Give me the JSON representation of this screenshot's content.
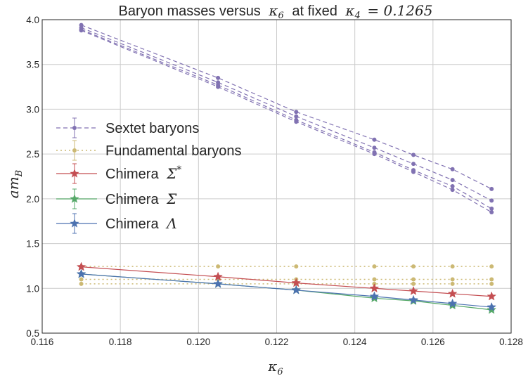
{
  "chart_data": {
    "type": "line",
    "title": "Baryon masses versus κ₆ at fixed κ₄ = 0.1265",
    "title_text": "Baryon masses versus",
    "title_math_kappa6": "κ",
    "title_math_sub6": "6",
    "title_mid": "at fixed",
    "title_math_kappa4": "κ",
    "title_math_sub4": "4",
    "title_value": "= 0.1265",
    "xlabel": "κ₆",
    "xlabel_main": "κ",
    "xlabel_sub": "6",
    "ylabel": "a m_B",
    "ylabel_main": "am",
    "ylabel_sub": "B",
    "xlim": [
      0.116,
      0.128
    ],
    "ylim": [
      0.5,
      4.0
    ],
    "xticks": [
      "0.116",
      "0.118",
      "0.120",
      "0.122",
      "0.124",
      "0.126",
      "0.128"
    ],
    "yticks": [
      "0.5",
      "1.0",
      "1.5",
      "2.0",
      "2.5",
      "3.0",
      "3.5",
      "4.0"
    ],
    "grid": true,
    "legend_position": "center-left",
    "x": [
      0.117,
      0.1205,
      0.1225,
      0.1245,
      0.1255,
      0.1265,
      0.1275
    ],
    "series": [
      {
        "name": "Sextet baryons",
        "legend_label": "Sextet baryons",
        "color": "#8172B2",
        "style": "dashed",
        "marker": "dot",
        "lines": [
          [
            3.94,
            3.35,
            2.97,
            2.66,
            2.49,
            2.33,
            2.11
          ],
          [
            3.91,
            3.3,
            2.92,
            2.57,
            2.39,
            2.21,
            1.98
          ],
          [
            3.89,
            3.27,
            2.88,
            2.52,
            2.32,
            2.14,
            1.89
          ],
          [
            3.88,
            3.25,
            2.86,
            2.5,
            2.3,
            2.1,
            1.85
          ]
        ]
      },
      {
        "name": "Fundamental baryons",
        "legend_label": "Fundamental baryons",
        "color": "#CCB974",
        "style": "dotted",
        "marker": "dot",
        "lines": [
          [
            1.245,
            1.245,
            1.245,
            1.245,
            1.245,
            1.245,
            1.245
          ],
          [
            1.1,
            1.1,
            1.1,
            1.1,
            1.1,
            1.1,
            1.1
          ],
          [
            1.05,
            1.05,
            1.05,
            1.05,
            1.05,
            1.05,
            1.05
          ]
        ]
      },
      {
        "name": "Chimera Σ*",
        "legend_label": "Chimera",
        "legend_math": "Σ",
        "legend_sup": "*",
        "color": "#C44E52",
        "style": "solid",
        "marker": "star",
        "values": [
          1.24,
          1.13,
          1.06,
          1.0,
          0.97,
          0.94,
          0.91
        ]
      },
      {
        "name": "Chimera Σ",
        "legend_label": "Chimera",
        "legend_math": "Σ",
        "color": "#55A868",
        "style": "solid",
        "marker": "star",
        "values": [
          1.16,
          1.05,
          0.98,
          0.89,
          0.86,
          0.81,
          0.76
        ]
      },
      {
        "name": "Chimera Λ",
        "legend_label": "Chimera",
        "legend_math": "Λ",
        "color": "#4C72B0",
        "style": "solid",
        "marker": "star",
        "values": [
          1.16,
          1.05,
          0.98,
          0.91,
          0.87,
          0.83,
          0.79
        ]
      }
    ]
  }
}
